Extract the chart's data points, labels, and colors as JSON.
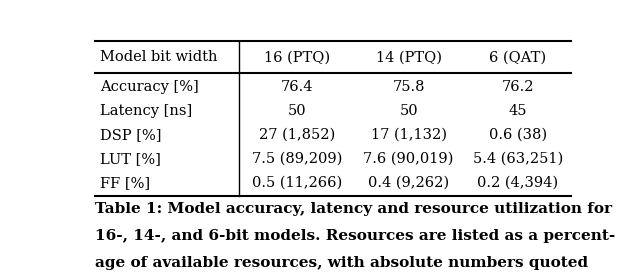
{
  "col_headers": [
    "Model bit width",
    "16 (PTQ)",
    "14 (PTQ)",
    "6 (QAT)"
  ],
  "rows": [
    [
      "Accuracy [%]",
      "76.4",
      "75.8",
      "76.2"
    ],
    [
      "Latency [ns]",
      "50",
      "50",
      "45"
    ],
    [
      "DSP [%]",
      "27 (1,852)",
      "17 (1,132)",
      "0.6 (38)"
    ],
    [
      "LUT [%]",
      "7.5 (89,209)",
      "7.6 (90,019)",
      "5.4 (63,251)"
    ],
    [
      "FF [%]",
      "0.5 (11,266)",
      "0.4 (9,262)",
      "0.2 (4,394)"
    ]
  ],
  "caption_line1": "Table 1: Model accuracy, latency and resource utilization for",
  "caption_line2": "16-, 14-, and 6-bit models. Resources are listed as a percent-",
  "caption_line3": "age of available resources, with absolute numbers quoted",
  "bg_color": "#ffffff",
  "text_color": "#000000",
  "header_fontsize": 10.5,
  "cell_fontsize": 10.5,
  "caption_fontsize": 11.0
}
